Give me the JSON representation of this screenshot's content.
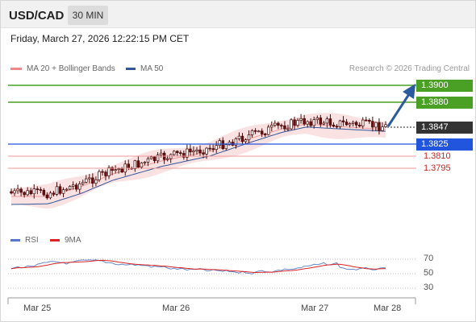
{
  "header": {
    "symbol": "USD/CAD",
    "timeframe": "30 MIN"
  },
  "datetime": "Friday, March 27, 2026 12:22:15 PM CET",
  "legend": {
    "ma20": {
      "label": "MA 20 + Bollinger Bands",
      "color": "#ee8888"
    },
    "ma50": {
      "label": "MA 50",
      "color": "#335599"
    }
  },
  "source": "Research © 2026 Trading Central",
  "levels": {
    "r2": "1.3900",
    "r1": "1.3880",
    "last": "1.3847",
    "pivot": "1.3825",
    "s1": "1.3810",
    "s2": "1.3795"
  },
  "rsi_legend": {
    "rsi": "RSI",
    "ma9": "9MA",
    "rsi_color": "#5577cc",
    "ma9_color": "#dd2222"
  },
  "rsi_ticks": [
    "70",
    "50",
    "30"
  ],
  "x_ticks": [
    "Mar 25",
    "Mar 26",
    "Mar 27",
    "Mar 28"
  ],
  "colors": {
    "resistance": "#4aa024",
    "pivot": "#2255dd",
    "support": "#ee9999",
    "arrow": "#2b5aa0",
    "up_candle": "#ffffff",
    "down_candle": "#6b0f0f"
  }
}
